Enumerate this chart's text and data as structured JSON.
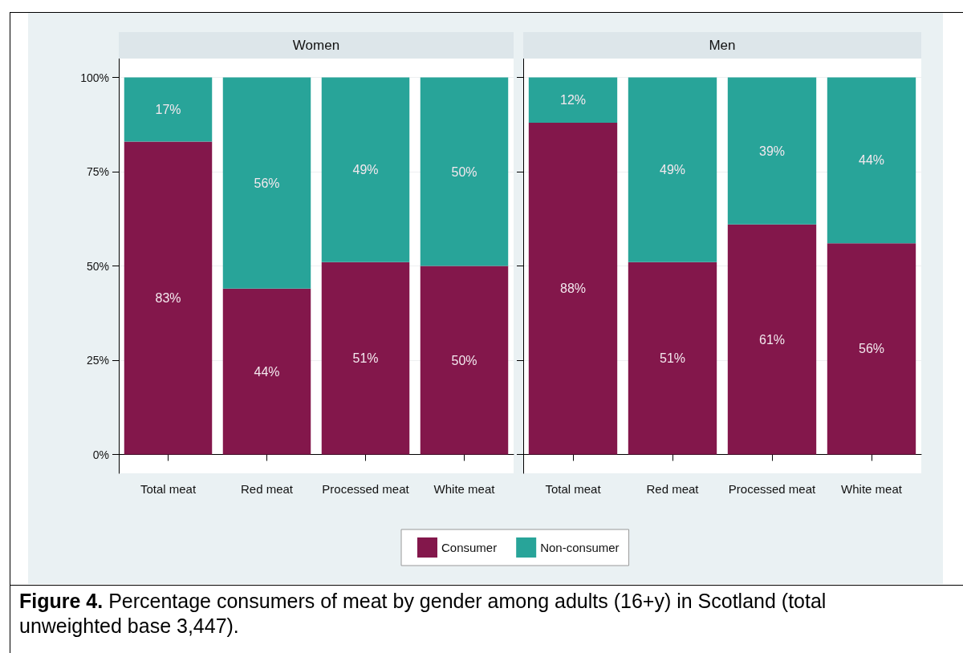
{
  "chart_data": [
    {
      "type": "bar",
      "stacked": true,
      "title": "Women",
      "categories": [
        "Total meat",
        "Red meat",
        "Processed meat",
        "White meat"
      ],
      "series": [
        {
          "name": "Consumer",
          "color": "#83174b",
          "values": [
            83,
            44,
            51,
            50
          ],
          "value_labels": [
            "83%",
            "44%",
            "51%",
            "50%"
          ]
        },
        {
          "name": "Non-consumer",
          "color": "#28a499",
          "values": [
            17,
            56,
            49,
            50
          ],
          "value_labels": [
            "17%",
            "56%",
            "49%",
            "50%"
          ]
        }
      ],
      "ylim": [
        -5,
        105
      ],
      "yticks": [
        {
          "value": 0,
          "label": "0%"
        },
        {
          "value": 25,
          "label": "25%"
        },
        {
          "value": 50,
          "label": "50%"
        },
        {
          "value": 75,
          "label": "75%"
        },
        {
          "value": 100,
          "label": "100%"
        }
      ],
      "grid": "y",
      "legend": "bottom",
      "annotations": [
        "Figure 4. Percentage consumers of meat by gender among adults (16+y) in Scotland (total unweighted base 3,447)."
      ]
    },
    {
      "type": "bar",
      "stacked": true,
      "title": "Men",
      "categories": [
        "Total meat",
        "Red meat",
        "Processed meat",
        "White meat"
      ],
      "series": [
        {
          "color": "#83174b",
          "values": [
            88,
            51,
            61,
            56
          ],
          "value_labels": [
            "88%",
            "51%",
            "61%",
            "56%"
          ]
        },
        {
          "color": "#28a499",
          "values": [
            12,
            49,
            39,
            44
          ],
          "value_labels": [
            "12%",
            "49%",
            "39%",
            "44%"
          ]
        }
      ],
      "ylim": [
        -5,
        105
      ],
      "yticks": [
        {
          "value": 0,
          "label": null
        },
        {
          "value": 25,
          "label": null
        },
        {
          "value": 50,
          "label": null
        },
        {
          "value": 75,
          "label": null
        },
        {
          "value": 100,
          "label": null
        }
      ],
      "grid": "y",
      "tick_labels": "x"
    }
  ]
}
